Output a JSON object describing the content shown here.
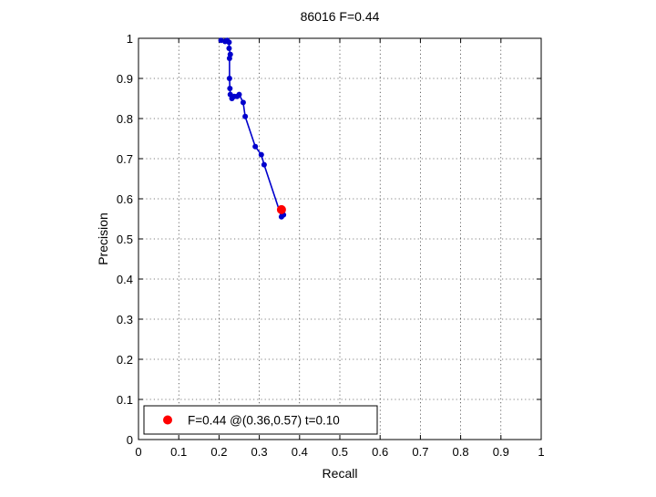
{
  "chart_data": {
    "type": "line",
    "title": "86016 F=0.44",
    "xlabel": "Recall",
    "ylabel": "Precision",
    "xlim": [
      0,
      1
    ],
    "ylim": [
      0,
      1
    ],
    "grid": true,
    "xticks": [
      0,
      0.1,
      0.2,
      0.3,
      0.4,
      0.5,
      0.6,
      0.7,
      0.8,
      0.9,
      1
    ],
    "yticks": [
      0,
      0.1,
      0.2,
      0.3,
      0.4,
      0.5,
      0.6,
      0.7,
      0.8,
      0.9,
      1
    ],
    "xtick_labels": [
      "0",
      "0.1",
      "0.2",
      "0.3",
      "0.4",
      "0.5",
      "0.6",
      "0.7",
      "0.8",
      "0.9",
      "1"
    ],
    "ytick_labels": [
      "0",
      "0.1",
      "0.2",
      "0.3",
      "0.4",
      "0.5",
      "0.6",
      "0.7",
      "0.8",
      "0.9",
      "1"
    ],
    "series": [
      {
        "color": "#0000cc",
        "marker": "dot",
        "x": [
          0.205,
          0.215,
          0.22,
          0.225,
          0.225,
          0.228,
          0.226,
          0.226,
          0.227,
          0.228,
          0.232,
          0.238,
          0.245,
          0.25,
          0.26,
          0.265,
          0.29,
          0.305,
          0.312,
          0.355,
          0.36
        ],
        "y": [
          0.995,
          0.992,
          0.995,
          0.99,
          0.975,
          0.96,
          0.95,
          0.9,
          0.875,
          0.86,
          0.85,
          0.855,
          0.855,
          0.86,
          0.84,
          0.805,
          0.73,
          0.71,
          0.685,
          0.555,
          0.56
        ]
      }
    ],
    "highlight": {
      "x": 0.355,
      "y": 0.573,
      "color": "#ff0000"
    },
    "legend": {
      "position": "bottom-left",
      "entries": [
        "F=0.44 @(0.36,0.57) t=0.10"
      ]
    }
  }
}
